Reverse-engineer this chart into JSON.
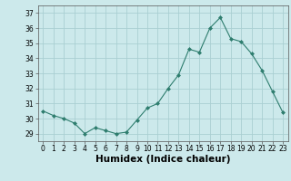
{
  "x": [
    0,
    1,
    2,
    3,
    4,
    5,
    6,
    7,
    8,
    9,
    10,
    11,
    12,
    13,
    14,
    15,
    16,
    17,
    18,
    19,
    20,
    21,
    22,
    23
  ],
  "y": [
    30.5,
    30.2,
    30.0,
    29.7,
    29.0,
    29.4,
    29.2,
    29.0,
    29.1,
    29.9,
    30.7,
    31.0,
    32.0,
    32.9,
    34.6,
    34.4,
    36.0,
    36.7,
    35.3,
    35.1,
    34.3,
    33.2,
    31.8,
    30.4
  ],
  "line_color": "#2e7d6e",
  "marker": "D",
  "marker_size": 2.0,
  "bg_color": "#cce9eb",
  "grid_color": "#aacfd2",
  "xlabel": "Humidex (Indice chaleur)",
  "ylim": [
    28.5,
    37.5
  ],
  "xlim": [
    -0.5,
    23.5
  ],
  "yticks": [
    29,
    30,
    31,
    32,
    33,
    34,
    35,
    36,
    37
  ],
  "xticks": [
    0,
    1,
    2,
    3,
    4,
    5,
    6,
    7,
    8,
    9,
    10,
    11,
    12,
    13,
    14,
    15,
    16,
    17,
    18,
    19,
    20,
    21,
    22,
    23
  ],
  "tick_fontsize": 5.5,
  "xlabel_fontsize": 7.5
}
